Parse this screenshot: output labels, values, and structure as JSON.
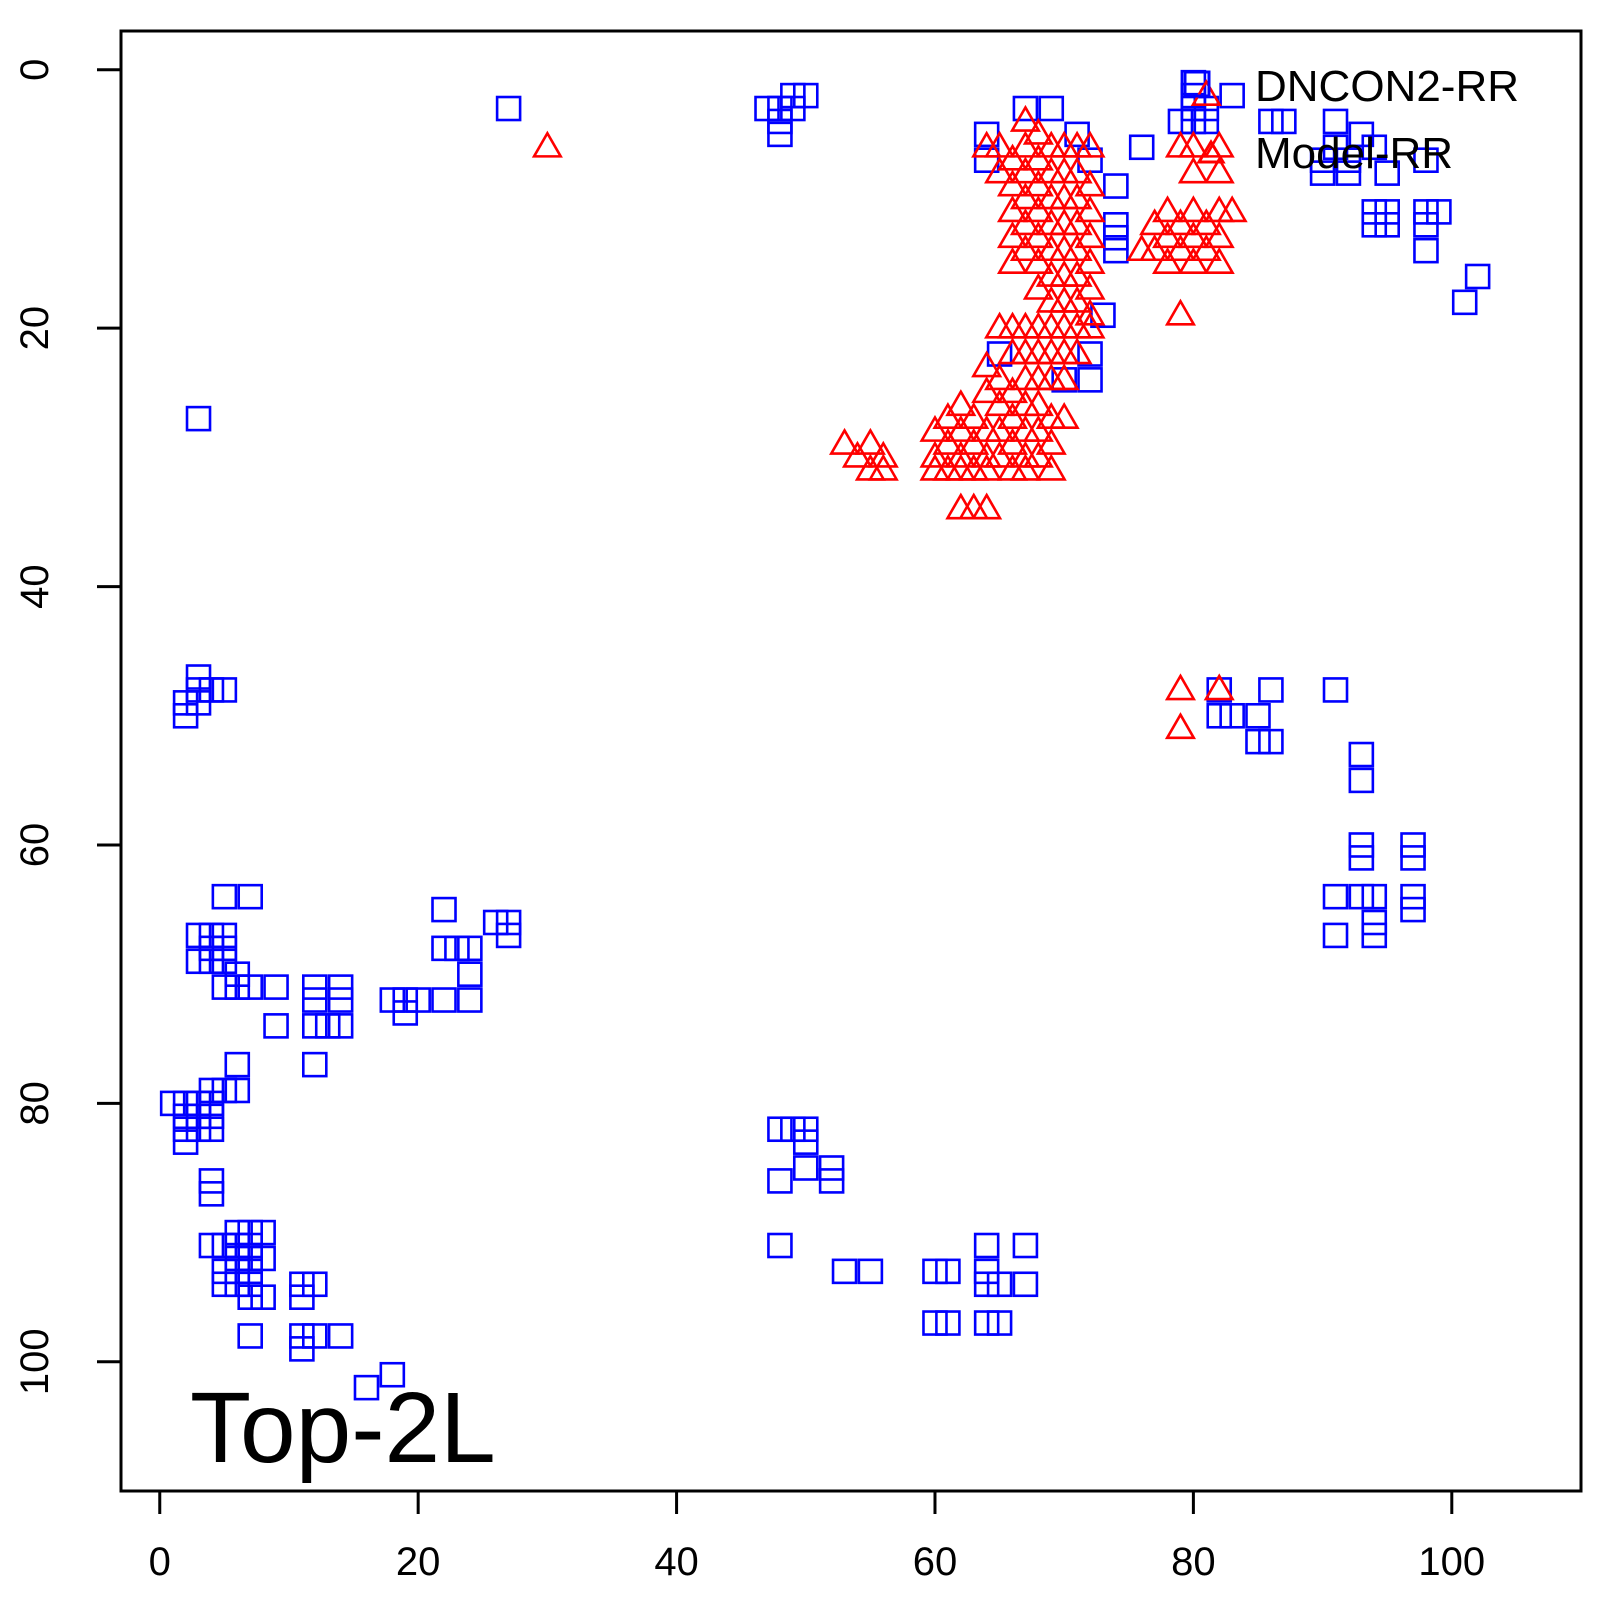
{
  "chart_data": {
    "type": "scatter",
    "title": "",
    "xlabel": "",
    "ylabel": "",
    "xlim": [
      -3,
      110
    ],
    "ylim": [
      -3,
      110
    ],
    "y_reversed": true,
    "x_ticks": [
      0,
      20,
      40,
      60,
      80,
      100
    ],
    "y_ticks": [
      0,
      20,
      40,
      60,
      80,
      100
    ],
    "grid": false,
    "legend_position": "top-right",
    "annotation": "Top-2L",
    "series": [
      {
        "name": "DNCON2-RR",
        "marker": "square",
        "color": "#0000ff",
        "points": [
          [
            27,
            3
          ],
          [
            3,
            27
          ],
          [
            47,
            3
          ],
          [
            48,
            3
          ],
          [
            49,
            3
          ],
          [
            48,
            4
          ],
          [
            48,
            5
          ],
          [
            49,
            2
          ],
          [
            50,
            2
          ],
          [
            64,
            5
          ],
          [
            64,
            7
          ],
          [
            67,
            3
          ],
          [
            69,
            3
          ],
          [
            71,
            5
          ],
          [
            72,
            7
          ],
          [
            74,
            9
          ],
          [
            74,
            12
          ],
          [
            74,
            13
          ],
          [
            74,
            14
          ],
          [
            73,
            19
          ],
          [
            72,
            22
          ],
          [
            72,
            24
          ],
          [
            70,
            24
          ],
          [
            65,
            22
          ],
          [
            76,
            6
          ],
          [
            79,
            4
          ],
          [
            80,
            1
          ],
          [
            80,
            2
          ],
          [
            80,
            3
          ],
          [
            80,
            4
          ],
          [
            81,
            3
          ],
          [
            81,
            4
          ],
          [
            83,
            2
          ],
          [
            86,
            4
          ],
          [
            87,
            4
          ],
          [
            90,
            7
          ],
          [
            90,
            8
          ],
          [
            91,
            4
          ],
          [
            91,
            6
          ],
          [
            92,
            7
          ],
          [
            92,
            8
          ],
          [
            93,
            5
          ],
          [
            94,
            6
          ],
          [
            94,
            11
          ],
          [
            94,
            12
          ],
          [
            95,
            8
          ],
          [
            95,
            11
          ],
          [
            95,
            12
          ],
          [
            98,
            7
          ],
          [
            98,
            11
          ],
          [
            98,
            12
          ],
          [
            98,
            14
          ],
          [
            99,
            11
          ],
          [
            101,
            18
          ],
          [
            102,
            16
          ],
          [
            2,
            49
          ],
          [
            2,
            50
          ],
          [
            3,
            47
          ],
          [
            3,
            48
          ],
          [
            3,
            49
          ],
          [
            4,
            48
          ],
          [
            5,
            48
          ],
          [
            82,
            48
          ],
          [
            82,
            50
          ],
          [
            83,
            50
          ],
          [
            85,
            50
          ],
          [
            85,
            52
          ],
          [
            86,
            48
          ],
          [
            86,
            52
          ],
          [
            91,
            48
          ],
          [
            93,
            53
          ],
          [
            93,
            55
          ],
          [
            93,
            60
          ],
          [
            93,
            61
          ],
          [
            97,
            60
          ],
          [
            97,
            61
          ],
          [
            91,
            64
          ],
          [
            91,
            67
          ],
          [
            93,
            64
          ],
          [
            94,
            64
          ],
          [
            94,
            66
          ],
          [
            94,
            67
          ],
          [
            97,
            64
          ],
          [
            97,
            65
          ],
          [
            5,
            64
          ],
          [
            7,
            64
          ],
          [
            3,
            67
          ],
          [
            3,
            69
          ],
          [
            4,
            67
          ],
          [
            4,
            68
          ],
          [
            4,
            69
          ],
          [
            5,
            67
          ],
          [
            5,
            68
          ],
          [
            5,
            69
          ],
          [
            5,
            71
          ],
          [
            6,
            70
          ],
          [
            6,
            71
          ],
          [
            7,
            71
          ],
          [
            9,
            71
          ],
          [
            9,
            74
          ],
          [
            12,
            71
          ],
          [
            12,
            72
          ],
          [
            12,
            74
          ],
          [
            12,
            77
          ],
          [
            13,
            74
          ],
          [
            14,
            71
          ],
          [
            14,
            72
          ],
          [
            14,
            74
          ],
          [
            18,
            72
          ],
          [
            19,
            72
          ],
          [
            19,
            73
          ],
          [
            20,
            72
          ],
          [
            22,
            65
          ],
          [
            22,
            68
          ],
          [
            22,
            72
          ],
          [
            23,
            68
          ],
          [
            24,
            68
          ],
          [
            24,
            70
          ],
          [
            24,
            72
          ],
          [
            26,
            66
          ],
          [
            27,
            66
          ],
          [
            27,
            67
          ],
          [
            1,
            80
          ],
          [
            2,
            80
          ],
          [
            2,
            81
          ],
          [
            2,
            82
          ],
          [
            2,
            83
          ],
          [
            3,
            80
          ],
          [
            3,
            81
          ],
          [
            3,
            82
          ],
          [
            4,
            79
          ],
          [
            4,
            80
          ],
          [
            4,
            81
          ],
          [
            4,
            82
          ],
          [
            5,
            79
          ],
          [
            6,
            77
          ],
          [
            6,
            79
          ],
          [
            4,
            86
          ],
          [
            4,
            87
          ],
          [
            4,
            91
          ],
          [
            5,
            91
          ],
          [
            5,
            93
          ],
          [
            5,
            94
          ],
          [
            6,
            90
          ],
          [
            6,
            91
          ],
          [
            6,
            92
          ],
          [
            6,
            93
          ],
          [
            6,
            94
          ],
          [
            7,
            90
          ],
          [
            7,
            91
          ],
          [
            7,
            92
          ],
          [
            7,
            93
          ],
          [
            7,
            94
          ],
          [
            7,
            95
          ],
          [
            7,
            98
          ],
          [
            8,
            90
          ],
          [
            8,
            92
          ],
          [
            8,
            95
          ],
          [
            11,
            94
          ],
          [
            11,
            95
          ],
          [
            11,
            98
          ],
          [
            11,
            99
          ],
          [
            12,
            94
          ],
          [
            12,
            98
          ],
          [
            14,
            98
          ],
          [
            16,
            102
          ],
          [
            18,
            101
          ],
          [
            48,
            82
          ],
          [
            48,
            86
          ],
          [
            48,
            91
          ],
          [
            49,
            82
          ],
          [
            50,
            82
          ],
          [
            50,
            83
          ],
          [
            50,
            85
          ],
          [
            52,
            85
          ],
          [
            52,
            86
          ],
          [
            53,
            93
          ],
          [
            55,
            93
          ],
          [
            60,
            93
          ],
          [
            61,
            93
          ],
          [
            60,
            97
          ],
          [
            61,
            97
          ],
          [
            64,
            91
          ],
          [
            64,
            93
          ],
          [
            64,
            94
          ],
          [
            64,
            97
          ],
          [
            65,
            94
          ],
          [
            65,
            97
          ],
          [
            67,
            91
          ],
          [
            67,
            94
          ]
        ]
      },
      {
        "name": "Model-RR",
        "marker": "triangle",
        "color": "#ff0000",
        "points": [
          [
            30,
            6
          ],
          [
            64,
            6
          ],
          [
            65,
            6
          ],
          [
            65,
            8
          ],
          [
            66,
            7
          ],
          [
            66,
            9
          ],
          [
            67,
            4
          ],
          [
            67,
            6
          ],
          [
            67,
            8
          ],
          [
            67,
            10
          ],
          [
            67,
            12
          ],
          [
            68,
            5
          ],
          [
            68,
            7
          ],
          [
            68,
            9
          ],
          [
            68,
            11
          ],
          [
            68,
            13
          ],
          [
            68,
            15
          ],
          [
            69,
            6
          ],
          [
            69,
            8
          ],
          [
            69,
            10
          ],
          [
            69,
            12
          ],
          [
            69,
            14
          ],
          [
            69,
            16
          ],
          [
            70,
            6
          ],
          [
            70,
            8
          ],
          [
            70,
            10
          ],
          [
            70,
            12
          ],
          [
            70,
            14
          ],
          [
            70,
            16
          ],
          [
            71,
            6
          ],
          [
            71,
            8
          ],
          [
            71,
            10
          ],
          [
            71,
            12
          ],
          [
            71,
            14
          ],
          [
            71,
            16
          ],
          [
            72,
            6
          ],
          [
            72,
            9
          ],
          [
            72,
            11
          ],
          [
            72,
            13
          ],
          [
            72,
            15
          ],
          [
            72,
            17
          ],
          [
            66,
            11
          ],
          [
            66,
            13
          ],
          [
            66,
            15
          ],
          [
            67,
            14
          ],
          [
            68,
            17
          ],
          [
            69,
            18
          ],
          [
            70,
            18
          ],
          [
            71,
            18
          ],
          [
            72,
            19
          ],
          [
            72,
            20
          ],
          [
            65,
            20
          ],
          [
            66,
            20
          ],
          [
            67,
            20
          ],
          [
            68,
            20
          ],
          [
            69,
            20
          ],
          [
            70,
            20
          ],
          [
            71,
            20
          ],
          [
            66,
            22
          ],
          [
            67,
            22
          ],
          [
            68,
            22
          ],
          [
            69,
            22
          ],
          [
            70,
            22
          ],
          [
            71,
            22
          ],
          [
            67,
            24
          ],
          [
            68,
            24
          ],
          [
            69,
            24
          ],
          [
            70,
            24
          ],
          [
            64,
            23
          ],
          [
            64,
            25
          ],
          [
            65,
            24
          ],
          [
            65,
            26
          ],
          [
            65,
            28
          ],
          [
            66,
            25
          ],
          [
            66,
            27
          ],
          [
            66,
            29
          ],
          [
            67,
            26
          ],
          [
            67,
            28
          ],
          [
            67,
            30
          ],
          [
            68,
            26
          ],
          [
            68,
            28
          ],
          [
            68,
            30
          ],
          [
            69,
            27
          ],
          [
            69,
            29
          ],
          [
            69,
            31
          ],
          [
            70,
            27
          ],
          [
            60,
            28
          ],
          [
            60,
            30
          ],
          [
            60,
            31
          ],
          [
            61,
            27
          ],
          [
            61,
            29
          ],
          [
            61,
            31
          ],
          [
            62,
            26
          ],
          [
            62,
            28
          ],
          [
            62,
            30
          ],
          [
            62,
            31
          ],
          [
            63,
            27
          ],
          [
            63,
            29
          ],
          [
            63,
            31
          ],
          [
            64,
            28
          ],
          [
            64,
            30
          ],
          [
            64,
            31
          ],
          [
            65,
            30
          ],
          [
            66,
            31
          ],
          [
            67,
            31
          ],
          [
            53,
            29
          ],
          [
            54,
            30
          ],
          [
            55,
            29
          ],
          [
            55,
            31
          ],
          [
            56,
            30
          ],
          [
            56,
            31
          ],
          [
            62,
            34
          ],
          [
            63,
            34
          ],
          [
            64,
            34
          ],
          [
            77,
            12
          ],
          [
            77,
            14
          ],
          [
            78,
            11
          ],
          [
            78,
            13
          ],
          [
            78,
            15
          ],
          [
            79,
            12
          ],
          [
            79,
            14
          ],
          [
            80,
            11
          ],
          [
            80,
            13
          ],
          [
            80,
            15
          ],
          [
            81,
            12
          ],
          [
            81,
            14
          ],
          [
            82,
            11
          ],
          [
            82,
            13
          ],
          [
            82,
            15
          ],
          [
            83,
            11
          ],
          [
            76,
            14
          ],
          [
            79,
            6
          ],
          [
            80,
            6
          ],
          [
            80,
            8
          ],
          [
            81,
            2
          ],
          [
            82,
            6
          ],
          [
            82,
            8
          ],
          [
            79,
            19
          ],
          [
            79,
            48
          ],
          [
            79,
            51
          ],
          [
            82,
            48
          ]
        ]
      }
    ]
  }
}
